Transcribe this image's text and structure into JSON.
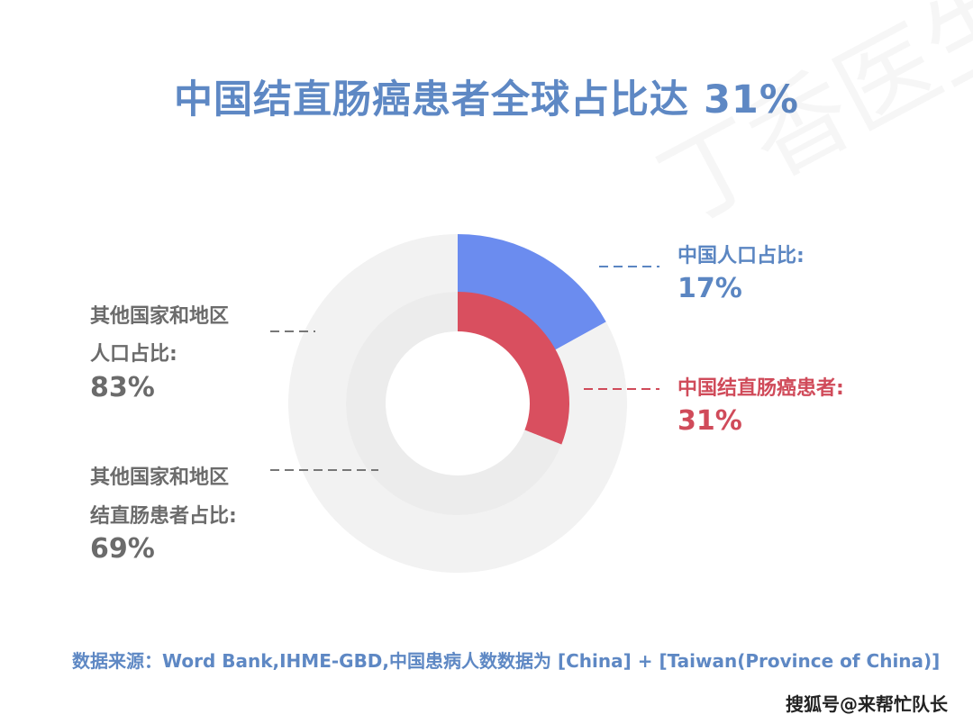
{
  "title": "中国结直肠癌患者全球占比达 31%",
  "chart_data": {
    "type": "pie",
    "rings": [
      {
        "name": "人口占比",
        "slices": [
          {
            "label_lines": [
              "中国人口占比:"
            ],
            "value": 17,
            "display": "17%",
            "color": "#6b8cef"
          },
          {
            "label_lines": [
              "其他国家和地区",
              "人口占比:"
            ],
            "value": 83,
            "display": "83%",
            "color": "#f2f2f2"
          }
        ]
      },
      {
        "name": "结直肠癌患者占比",
        "slices": [
          {
            "label_lines": [
              "中国结直肠癌患者:"
            ],
            "value": 31,
            "display": "31%",
            "color": "#d94f5f"
          },
          {
            "label_lines": [
              "其他国家和地区",
              "结直肠患者占比:"
            ],
            "value": 69,
            "display": "69%",
            "color": "#ececec"
          }
        ]
      }
    ]
  },
  "source": "数据来源：Word Bank,IHME-GBD,中国患病人数数据为 [China] + [Taiwan(Province of China)]",
  "footer": "搜狐号@来帮忙队长",
  "watermark": "丁香医生"
}
